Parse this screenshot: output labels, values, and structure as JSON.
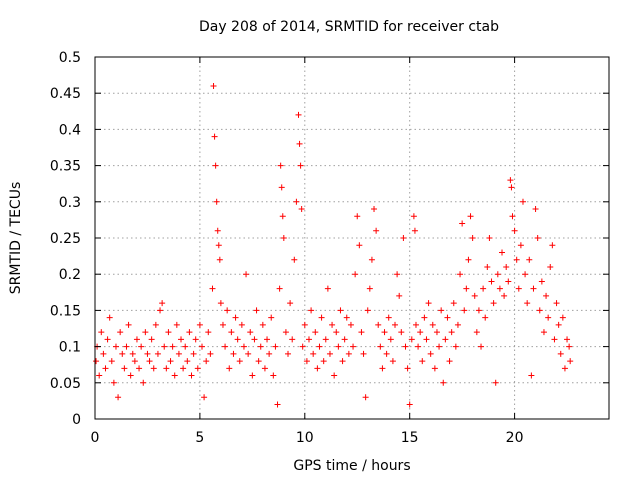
{
  "chart_data": {
    "type": "scatter",
    "title": "Day 208 of 2014, SRMTID for receiver ctab",
    "xlabel": "GPS time / hours",
    "ylabel": "SRMTID / TECUs",
    "xlim": [
      0,
      24.5
    ],
    "ylim": [
      0,
      0.5
    ],
    "x_ticks": [
      0,
      5,
      10,
      15,
      20
    ],
    "x_tick_labels": [
      "0",
      "5",
      "10",
      "15",
      "20"
    ],
    "y_ticks": [
      0,
      0.05,
      0.1,
      0.15,
      0.2,
      0.25,
      0.3,
      0.35,
      0.4,
      0.45,
      0.5
    ],
    "y_tick_labels": [
      "0",
      "0.05",
      "0.1",
      "0.15",
      "0.2",
      "0.25",
      "0.3",
      "0.35",
      "0.4",
      "0.45",
      "0.5"
    ],
    "grid": true,
    "marker": "+",
    "color": "#ff0000",
    "series": [
      {
        "name": "SRMTID",
        "points": [
          [
            0.05,
            0.08
          ],
          [
            0.1,
            0.1
          ],
          [
            0.2,
            0.06
          ],
          [
            0.3,
            0.12
          ],
          [
            0.4,
            0.09
          ],
          [
            0.5,
            0.07
          ],
          [
            0.6,
            0.11
          ],
          [
            0.7,
            0.14
          ],
          [
            0.8,
            0.08
          ],
          [
            0.9,
            0.05
          ],
          [
            1.0,
            0.1
          ],
          [
            1.1,
            0.03
          ],
          [
            1.2,
            0.12
          ],
          [
            1.3,
            0.09
          ],
          [
            1.4,
            0.07
          ],
          [
            1.5,
            0.1
          ],
          [
            1.6,
            0.13
          ],
          [
            1.7,
            0.06
          ],
          [
            1.8,
            0.09
          ],
          [
            1.9,
            0.08
          ],
          [
            2.0,
            0.11
          ],
          [
            2.1,
            0.07
          ],
          [
            2.2,
            0.1
          ],
          [
            2.3,
            0.05
          ],
          [
            2.4,
            0.12
          ],
          [
            2.5,
            0.09
          ],
          [
            2.6,
            0.08
          ],
          [
            2.7,
            0.11
          ],
          [
            2.8,
            0.07
          ],
          [
            2.9,
            0.13
          ],
          [
            3.0,
            0.09
          ],
          [
            3.1,
            0.15
          ],
          [
            3.2,
            0.16
          ],
          [
            3.3,
            0.1
          ],
          [
            3.4,
            0.07
          ],
          [
            3.5,
            0.12
          ],
          [
            3.6,
            0.08
          ],
          [
            3.7,
            0.1
          ],
          [
            3.8,
            0.06
          ],
          [
            3.9,
            0.13
          ],
          [
            4.0,
            0.09
          ],
          [
            4.1,
            0.11
          ],
          [
            4.2,
            0.07
          ],
          [
            4.3,
            0.1
          ],
          [
            4.4,
            0.08
          ],
          [
            4.5,
            0.12
          ],
          [
            4.6,
            0.06
          ],
          [
            4.7,
            0.09
          ],
          [
            4.8,
            0.11
          ],
          [
            4.9,
            0.07
          ],
          [
            5.0,
            0.13
          ],
          [
            5.1,
            0.1
          ],
          [
            5.2,
            0.03
          ],
          [
            5.3,
            0.08
          ],
          [
            5.4,
            0.12
          ],
          [
            5.5,
            0.09
          ],
          [
            5.6,
            0.18
          ],
          [
            5.65,
            0.46
          ],
          [
            5.7,
            0.39
          ],
          [
            5.75,
            0.35
          ],
          [
            5.8,
            0.3
          ],
          [
            5.85,
            0.26
          ],
          [
            5.9,
            0.24
          ],
          [
            5.95,
            0.22
          ],
          [
            6.0,
            0.16
          ],
          [
            6.1,
            0.13
          ],
          [
            6.2,
            0.1
          ],
          [
            6.3,
            0.15
          ],
          [
            6.4,
            0.07
          ],
          [
            6.5,
            0.12
          ],
          [
            6.6,
            0.09
          ],
          [
            6.7,
            0.14
          ],
          [
            6.8,
            0.11
          ],
          [
            6.9,
            0.08
          ],
          [
            7.0,
            0.13
          ],
          [
            7.1,
            0.1
          ],
          [
            7.2,
            0.2
          ],
          [
            7.3,
            0.09
          ],
          [
            7.4,
            0.12
          ],
          [
            7.5,
            0.06
          ],
          [
            7.6,
            0.11
          ],
          [
            7.7,
            0.15
          ],
          [
            7.8,
            0.08
          ],
          [
            7.9,
            0.1
          ],
          [
            8.0,
            0.13
          ],
          [
            8.1,
            0.07
          ],
          [
            8.2,
            0.11
          ],
          [
            8.3,
            0.09
          ],
          [
            8.4,
            0.14
          ],
          [
            8.5,
            0.06
          ],
          [
            8.6,
            0.1
          ],
          [
            8.7,
            0.02
          ],
          [
            8.8,
            0.18
          ],
          [
            8.85,
            0.35
          ],
          [
            8.9,
            0.32
          ],
          [
            8.95,
            0.28
          ],
          [
            9.0,
            0.25
          ],
          [
            9.1,
            0.12
          ],
          [
            9.2,
            0.09
          ],
          [
            9.3,
            0.16
          ],
          [
            9.4,
            0.11
          ],
          [
            9.5,
            0.22
          ],
          [
            9.6,
            0.3
          ],
          [
            9.7,
            0.42
          ],
          [
            9.75,
            0.38
          ],
          [
            9.8,
            0.35
          ],
          [
            9.85,
            0.29
          ],
          [
            9.9,
            0.1
          ],
          [
            10.0,
            0.13
          ],
          [
            10.1,
            0.08
          ],
          [
            10.2,
            0.11
          ],
          [
            10.3,
            0.15
          ],
          [
            10.4,
            0.09
          ],
          [
            10.5,
            0.12
          ],
          [
            10.6,
            0.07
          ],
          [
            10.7,
            0.1
          ],
          [
            10.8,
            0.14
          ],
          [
            10.9,
            0.08
          ],
          [
            11.0,
            0.11
          ],
          [
            11.1,
            0.18
          ],
          [
            11.2,
            0.09
          ],
          [
            11.3,
            0.13
          ],
          [
            11.4,
            0.06
          ],
          [
            11.5,
            0.12
          ],
          [
            11.6,
            0.1
          ],
          [
            11.7,
            0.15
          ],
          [
            11.8,
            0.08
          ],
          [
            11.9,
            0.11
          ],
          [
            12.0,
            0.14
          ],
          [
            12.1,
            0.09
          ],
          [
            12.2,
            0.13
          ],
          [
            12.3,
            0.1
          ],
          [
            12.4,
            0.2
          ],
          [
            12.5,
            0.28
          ],
          [
            12.6,
            0.24
          ],
          [
            12.7,
            0.12
          ],
          [
            12.8,
            0.09
          ],
          [
            12.9,
            0.03
          ],
          [
            13.0,
            0.15
          ],
          [
            13.1,
            0.18
          ],
          [
            13.2,
            0.22
          ],
          [
            13.3,
            0.29
          ],
          [
            13.4,
            0.26
          ],
          [
            13.5,
            0.13
          ],
          [
            13.6,
            0.1
          ],
          [
            13.7,
            0.07
          ],
          [
            13.8,
            0.12
          ],
          [
            13.9,
            0.09
          ],
          [
            14.0,
            0.14
          ],
          [
            14.1,
            0.11
          ],
          [
            14.2,
            0.08
          ],
          [
            14.3,
            0.13
          ],
          [
            14.4,
            0.2
          ],
          [
            14.5,
            0.17
          ],
          [
            14.6,
            0.12
          ],
          [
            14.7,
            0.25
          ],
          [
            14.8,
            0.1
          ],
          [
            14.9,
            0.07
          ],
          [
            15.0,
            0.02
          ],
          [
            15.1,
            0.11
          ],
          [
            15.2,
            0.28
          ],
          [
            15.25,
            0.26
          ],
          [
            15.3,
            0.13
          ],
          [
            15.4,
            0.1
          ],
          [
            15.5,
            0.12
          ],
          [
            15.6,
            0.08
          ],
          [
            15.7,
            0.14
          ],
          [
            15.8,
            0.11
          ],
          [
            15.9,
            0.16
          ],
          [
            16.0,
            0.09
          ],
          [
            16.1,
            0.13
          ],
          [
            16.2,
            0.07
          ],
          [
            16.3,
            0.12
          ],
          [
            16.4,
            0.1
          ],
          [
            16.5,
            0.15
          ],
          [
            16.6,
            0.05
          ],
          [
            16.7,
            0.11
          ],
          [
            16.8,
            0.14
          ],
          [
            16.9,
            0.08
          ],
          [
            17.0,
            0.12
          ],
          [
            17.1,
            0.16
          ],
          [
            17.2,
            0.1
          ],
          [
            17.3,
            0.13
          ],
          [
            17.4,
            0.2
          ],
          [
            17.5,
            0.27
          ],
          [
            17.6,
            0.15
          ],
          [
            17.7,
            0.18
          ],
          [
            17.8,
            0.22
          ],
          [
            17.9,
            0.28
          ],
          [
            18.0,
            0.25
          ],
          [
            18.1,
            0.17
          ],
          [
            18.2,
            0.12
          ],
          [
            18.3,
            0.15
          ],
          [
            18.4,
            0.1
          ],
          [
            18.5,
            0.18
          ],
          [
            18.6,
            0.14
          ],
          [
            18.7,
            0.21
          ],
          [
            18.8,
            0.25
          ],
          [
            18.9,
            0.19
          ],
          [
            19.0,
            0.16
          ],
          [
            19.1,
            0.05
          ],
          [
            19.2,
            0.2
          ],
          [
            19.3,
            0.18
          ],
          [
            19.4,
            0.23
          ],
          [
            19.5,
            0.17
          ],
          [
            19.6,
            0.21
          ],
          [
            19.7,
            0.19
          ],
          [
            19.8,
            0.33
          ],
          [
            19.85,
            0.32
          ],
          [
            19.9,
            0.28
          ],
          [
            20.0,
            0.26
          ],
          [
            20.1,
            0.22
          ],
          [
            20.2,
            0.18
          ],
          [
            20.3,
            0.24
          ],
          [
            20.4,
            0.3
          ],
          [
            20.5,
            0.2
          ],
          [
            20.6,
            0.16
          ],
          [
            20.7,
            0.22
          ],
          [
            20.8,
            0.06
          ],
          [
            20.9,
            0.18
          ],
          [
            21.0,
            0.29
          ],
          [
            21.1,
            0.25
          ],
          [
            21.2,
            0.15
          ],
          [
            21.3,
            0.19
          ],
          [
            21.4,
            0.12
          ],
          [
            21.5,
            0.17
          ],
          [
            21.6,
            0.14
          ],
          [
            21.7,
            0.21
          ],
          [
            21.8,
            0.24
          ],
          [
            21.9,
            0.11
          ],
          [
            22.0,
            0.16
          ],
          [
            22.1,
            0.13
          ],
          [
            22.2,
            0.09
          ],
          [
            22.3,
            0.14
          ],
          [
            22.4,
            0.07
          ],
          [
            22.5,
            0.11
          ],
          [
            22.6,
            0.1
          ],
          [
            22.65,
            0.08
          ]
        ]
      }
    ]
  }
}
